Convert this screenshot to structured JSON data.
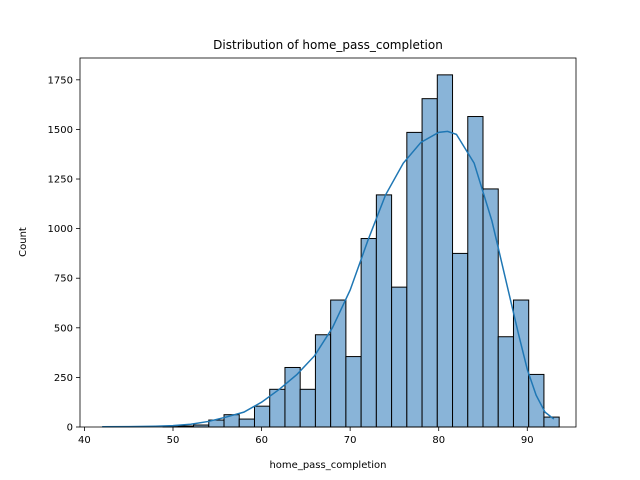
{
  "chart_data": {
    "type": "bar",
    "title": "Distribution of home_pass_completion",
    "xlabel": "home_pass_completion",
    "ylabel": "Count",
    "xlim": [
      39.5,
      95.5
    ],
    "ylim": [
      0,
      1860
    ],
    "xticks": [
      40,
      50,
      60,
      70,
      80,
      90
    ],
    "yticks": [
      0,
      250,
      500,
      750,
      1000,
      1250,
      1500,
      1750
    ],
    "bin_width": 1.72,
    "bins": [
      {
        "left": 42.0,
        "count": 0
      },
      {
        "left": 43.72,
        "count": 0
      },
      {
        "left": 45.44,
        "count": 0
      },
      {
        "left": 47.16,
        "count": 0
      },
      {
        "left": 48.88,
        "count": 2
      },
      {
        "left": 50.6,
        "count": 5
      },
      {
        "left": 52.32,
        "count": 10
      },
      {
        "left": 54.04,
        "count": 35
      },
      {
        "left": 55.76,
        "count": 62
      },
      {
        "left": 57.48,
        "count": 40
      },
      {
        "left": 59.2,
        "count": 105
      },
      {
        "left": 60.92,
        "count": 190
      },
      {
        "left": 62.64,
        "count": 300
      },
      {
        "left": 64.36,
        "count": 190
      },
      {
        "left": 66.08,
        "count": 465
      },
      {
        "left": 67.8,
        "count": 640
      },
      {
        "left": 69.52,
        "count": 355
      },
      {
        "left": 71.24,
        "count": 950
      },
      {
        "left": 72.96,
        "count": 1170
      },
      {
        "left": 74.68,
        "count": 705
      },
      {
        "left": 76.4,
        "count": 1485
      },
      {
        "left": 78.12,
        "count": 1655
      },
      {
        "left": 79.84,
        "count": 1775
      },
      {
        "left": 81.56,
        "count": 875
      },
      {
        "left": 83.28,
        "count": 1565
      },
      {
        "left": 85.0,
        "count": 1200
      },
      {
        "left": 86.72,
        "count": 455
      },
      {
        "left": 88.44,
        "count": 640
      },
      {
        "left": 90.16,
        "count": 265
      },
      {
        "left": 91.88,
        "count": 50
      }
    ],
    "kde": {
      "x": [
        42,
        45,
        48,
        50,
        52,
        54,
        56,
        58,
        60,
        62,
        64,
        66,
        68,
        70,
        72,
        74,
        76,
        78,
        80,
        81,
        82,
        84,
        86,
        88,
        89,
        90,
        91,
        92,
        93
      ],
      "y": [
        1,
        2,
        4,
        7,
        14,
        28,
        50,
        75,
        125,
        190,
        265,
        360,
        500,
        690,
        940,
        1170,
        1330,
        1435,
        1485,
        1490,
        1475,
        1330,
        1040,
        660,
        470,
        290,
        160,
        75,
        40
      ]
    },
    "colors": {
      "bar": "#89b4d8",
      "kde": "#1f77b4"
    },
    "grid": false,
    "legend": "none"
  }
}
